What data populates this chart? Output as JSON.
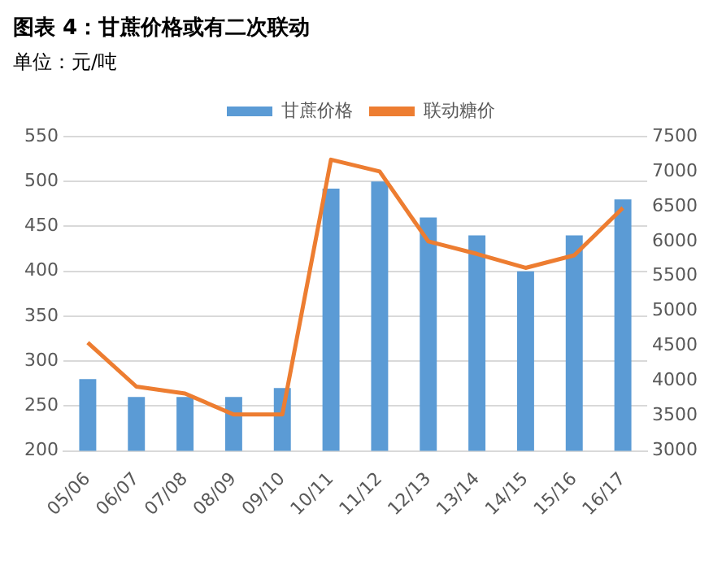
{
  "chart_data": {
    "type": "bar",
    "title": "图表 4：甘蔗价格或有二次联动",
    "subtitle": "单位：元/吨",
    "categories": [
      "05/06",
      "06/07",
      "07/08",
      "08/09",
      "09/10",
      "10/11",
      "11/12",
      "12/13",
      "13/14",
      "14/15",
      "15/16",
      "16/17"
    ],
    "series": [
      {
        "name": "甘蔗价格",
        "color": "#5b9bd5",
        "values": [
          280,
          260,
          260,
          260,
          270,
          492,
          500,
          460,
          440,
          400,
          440,
          480
        ]
      },
      {
        "name": "联动糖价",
        "type": "line",
        "axis": "y2",
        "color": "#ed7d31",
        "marker": "none",
        "values": [
          4550,
          3920,
          3820,
          3520,
          3520,
          7170,
          7000,
          6000,
          5820,
          5620,
          5800,
          6480
        ]
      }
    ],
    "ylim": [
      200,
      550
    ],
    "yticks": [
      200,
      250,
      300,
      350,
      400,
      450,
      500,
      550
    ],
    "y2lim": [
      3000,
      7500
    ],
    "y2ticks": [
      3000,
      3500,
      4000,
      4500,
      5000,
      5500,
      6000,
      6500,
      7000,
      7500
    ],
    "grid": "y",
    "legend": "top"
  }
}
